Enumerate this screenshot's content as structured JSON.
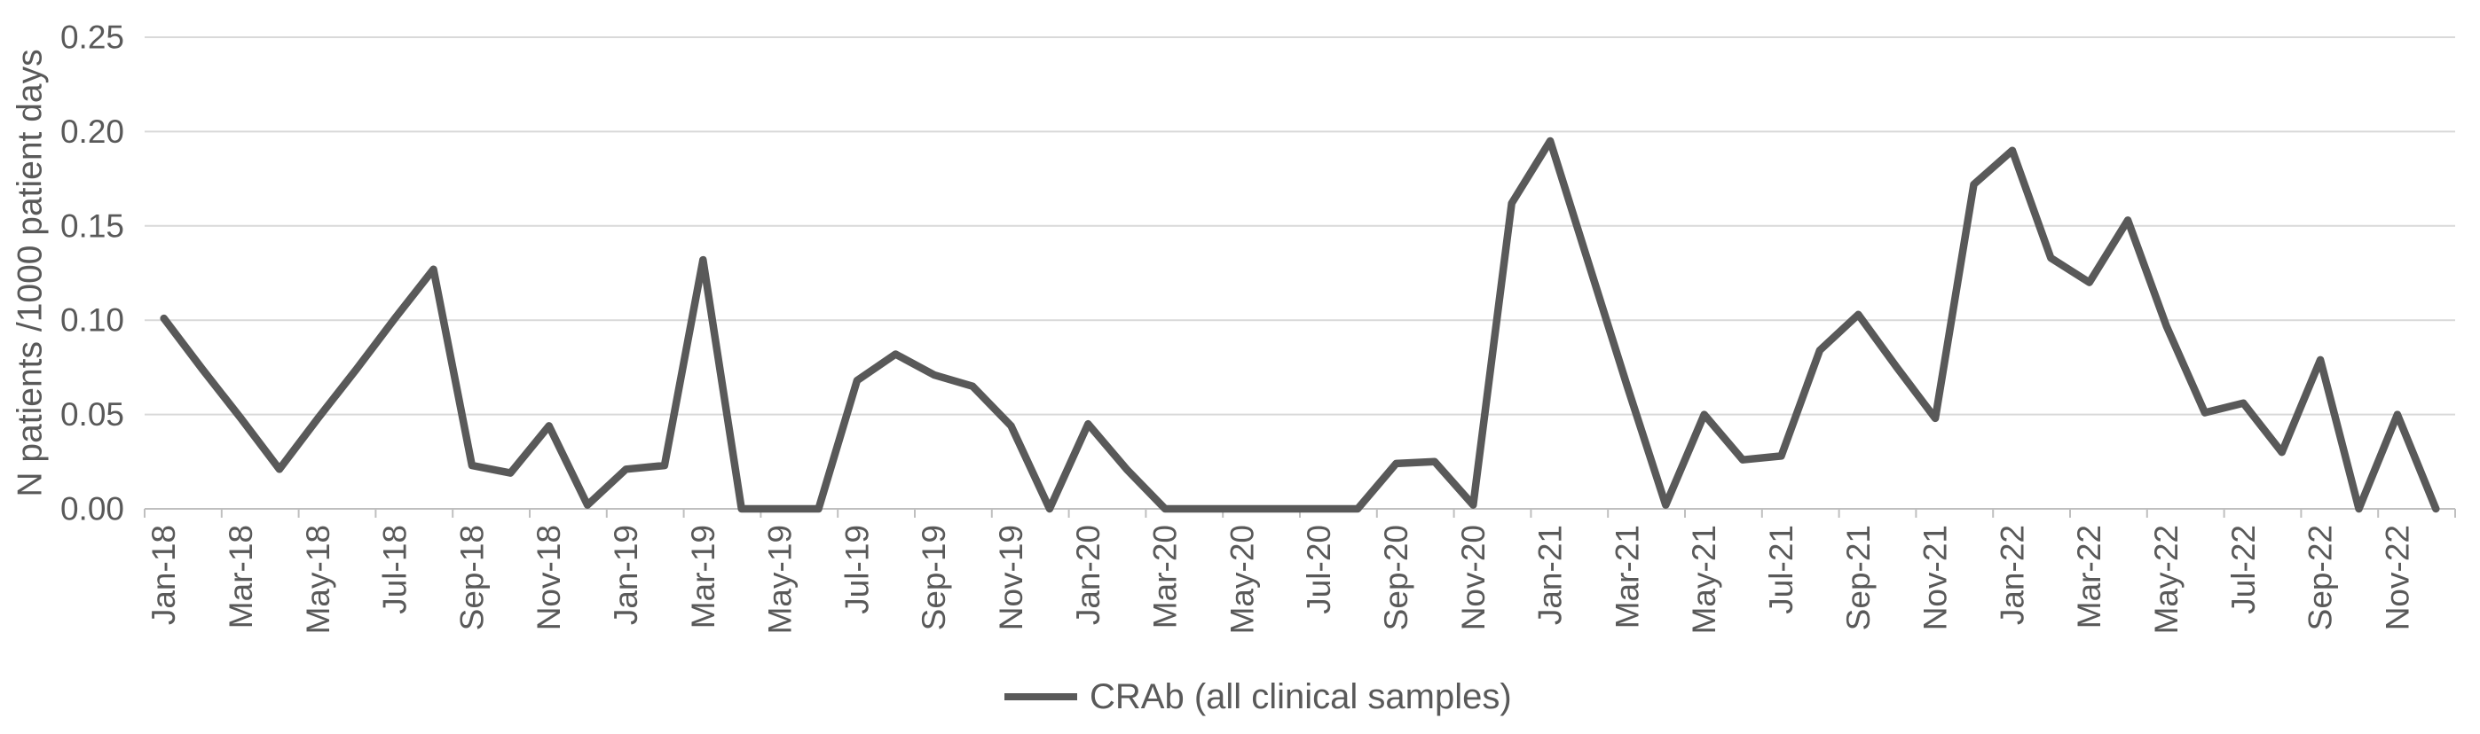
{
  "chart_data": {
    "type": "line",
    "title": "",
    "xlabel": "",
    "ylabel": "N patients /1000 patient days",
    "ylim": [
      0,
      0.25
    ],
    "ytick_step": 0.05,
    "ytick_labels": [
      "0.00",
      "0.05",
      "0.10",
      "0.15",
      "0.20",
      "0.25"
    ],
    "grid": "horizontal",
    "legend_position": "bottom-center",
    "x_tick_labels_shown": [
      "Jan-18",
      "Mar-18",
      "May-18",
      "Jul-18",
      "Sep-18",
      "Nov-18",
      "Jan-19",
      "Mar-19",
      "May-19",
      "Jul-19",
      "Sep-19",
      "Nov-19",
      "Jan-20",
      "Mar-20",
      "May-20",
      "Jul-20",
      "Sep-20",
      "Nov-20",
      "Jan-21",
      "Mar-21",
      "May-21",
      "Jul-21",
      "Sep-21",
      "Nov-21",
      "Jan-22",
      "Mar-22",
      "May-22",
      "Jul-22",
      "Sep-22",
      "Nov-22"
    ],
    "categories": [
      "Jan-18",
      "Feb-18",
      "Mar-18",
      "Apr-18",
      "May-18",
      "Jun-18",
      "Jul-18",
      "Aug-18",
      "Sep-18",
      "Oct-18",
      "Nov-18",
      "Dec-18",
      "Jan-19",
      "Feb-19",
      "Mar-19",
      "Apr-19",
      "May-19",
      "Jun-19",
      "Jul-19",
      "Aug-19",
      "Sep-19",
      "Oct-19",
      "Nov-19",
      "Dec-19",
      "Jan-20",
      "Feb-20",
      "Mar-20",
      "Apr-20",
      "May-20",
      "Jun-20",
      "Jul-20",
      "Aug-20",
      "Sep-20",
      "Oct-20",
      "Nov-20",
      "Dec-20",
      "Jan-21",
      "Feb-21",
      "Mar-21",
      "Apr-21",
      "May-21",
      "Jun-21",
      "Jul-21",
      "Aug-21",
      "Sep-21",
      "Oct-21",
      "Nov-21",
      "Dec-21",
      "Jan-22",
      "Feb-22",
      "Mar-22",
      "Apr-22",
      "May-22",
      "Jun-22",
      "Jul-22",
      "Aug-22",
      "Sep-22",
      "Oct-22",
      "Nov-22",
      "Dec-22"
    ],
    "series": [
      {
        "name": "CRAb (all clinical samples)",
        "values": [
          0.101,
          0.074,
          0.048,
          0.021,
          0.048,
          0.074,
          0.101,
          0.127,
          0.023,
          0.019,
          0.044,
          0.002,
          0.021,
          0.023,
          0.132,
          0.0,
          0.0,
          0.0,
          0.068,
          0.082,
          0.071,
          0.065,
          0.044,
          0.0,
          0.045,
          0.021,
          0.0,
          0.0,
          0.0,
          0.0,
          0.0,
          0.0,
          0.024,
          0.025,
          0.002,
          0.162,
          0.195,
          0.13,
          0.065,
          0.002,
          0.05,
          0.026,
          0.028,
          0.084,
          0.103,
          0.075,
          0.048,
          0.172,
          0.19,
          0.133,
          0.12,
          0.153,
          0.097,
          0.051,
          0.056,
          0.03,
          0.079,
          0.0,
          0.05,
          0.0
        ]
      }
    ],
    "colors": {
      "series_line": "#595959",
      "gridline": "#d9d9d9",
      "axis_line": "#bfbfbf",
      "tick_text": "#595959"
    }
  },
  "legend": {
    "label": "CRAb (all clinical samples)"
  },
  "axes": {
    "y_title": "N patients /1000 patient days"
  }
}
